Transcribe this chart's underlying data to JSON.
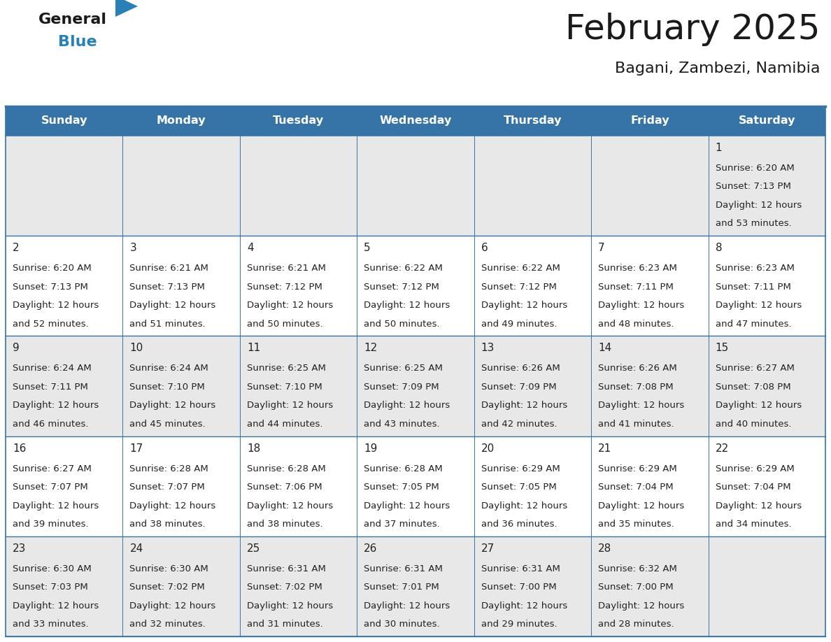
{
  "title": "February 2025",
  "subtitle": "Bagani, Zambezi, Namibia",
  "days_of_week": [
    "Sunday",
    "Monday",
    "Tuesday",
    "Wednesday",
    "Thursday",
    "Friday",
    "Saturday"
  ],
  "header_bg": "#3674a8",
  "header_text": "#ffffff",
  "cell_bg": "#e8e8e8",
  "cell_bg_white": "#ffffff",
  "border_color": "#3674a8",
  "text_color": "#222222",
  "day_num_color": "#222222",
  "title_color": "#1a1a1a",
  "subtitle_color": "#1a1a1a",
  "logo_black": "#1a1a1a",
  "logo_blue": "#2980b9",
  "triangle_color": "#2980b9",
  "calendar": [
    [
      {
        "day": null,
        "info": ""
      },
      {
        "day": null,
        "info": ""
      },
      {
        "day": null,
        "info": ""
      },
      {
        "day": null,
        "info": ""
      },
      {
        "day": null,
        "info": ""
      },
      {
        "day": null,
        "info": ""
      },
      {
        "day": 1,
        "info": "Sunrise: 6:20 AM\nSunset: 7:13 PM\nDaylight: 12 hours\nand 53 minutes."
      }
    ],
    [
      {
        "day": 2,
        "info": "Sunrise: 6:20 AM\nSunset: 7:13 PM\nDaylight: 12 hours\nand 52 minutes."
      },
      {
        "day": 3,
        "info": "Sunrise: 6:21 AM\nSunset: 7:13 PM\nDaylight: 12 hours\nand 51 minutes."
      },
      {
        "day": 4,
        "info": "Sunrise: 6:21 AM\nSunset: 7:12 PM\nDaylight: 12 hours\nand 50 minutes."
      },
      {
        "day": 5,
        "info": "Sunrise: 6:22 AM\nSunset: 7:12 PM\nDaylight: 12 hours\nand 50 minutes."
      },
      {
        "day": 6,
        "info": "Sunrise: 6:22 AM\nSunset: 7:12 PM\nDaylight: 12 hours\nand 49 minutes."
      },
      {
        "day": 7,
        "info": "Sunrise: 6:23 AM\nSunset: 7:11 PM\nDaylight: 12 hours\nand 48 minutes."
      },
      {
        "day": 8,
        "info": "Sunrise: 6:23 AM\nSunset: 7:11 PM\nDaylight: 12 hours\nand 47 minutes."
      }
    ],
    [
      {
        "day": 9,
        "info": "Sunrise: 6:24 AM\nSunset: 7:11 PM\nDaylight: 12 hours\nand 46 minutes."
      },
      {
        "day": 10,
        "info": "Sunrise: 6:24 AM\nSunset: 7:10 PM\nDaylight: 12 hours\nand 45 minutes."
      },
      {
        "day": 11,
        "info": "Sunrise: 6:25 AM\nSunset: 7:10 PM\nDaylight: 12 hours\nand 44 minutes."
      },
      {
        "day": 12,
        "info": "Sunrise: 6:25 AM\nSunset: 7:09 PM\nDaylight: 12 hours\nand 43 minutes."
      },
      {
        "day": 13,
        "info": "Sunrise: 6:26 AM\nSunset: 7:09 PM\nDaylight: 12 hours\nand 42 minutes."
      },
      {
        "day": 14,
        "info": "Sunrise: 6:26 AM\nSunset: 7:08 PM\nDaylight: 12 hours\nand 41 minutes."
      },
      {
        "day": 15,
        "info": "Sunrise: 6:27 AM\nSunset: 7:08 PM\nDaylight: 12 hours\nand 40 minutes."
      }
    ],
    [
      {
        "day": 16,
        "info": "Sunrise: 6:27 AM\nSunset: 7:07 PM\nDaylight: 12 hours\nand 39 minutes."
      },
      {
        "day": 17,
        "info": "Sunrise: 6:28 AM\nSunset: 7:07 PM\nDaylight: 12 hours\nand 38 minutes."
      },
      {
        "day": 18,
        "info": "Sunrise: 6:28 AM\nSunset: 7:06 PM\nDaylight: 12 hours\nand 38 minutes."
      },
      {
        "day": 19,
        "info": "Sunrise: 6:28 AM\nSunset: 7:05 PM\nDaylight: 12 hours\nand 37 minutes."
      },
      {
        "day": 20,
        "info": "Sunrise: 6:29 AM\nSunset: 7:05 PM\nDaylight: 12 hours\nand 36 minutes."
      },
      {
        "day": 21,
        "info": "Sunrise: 6:29 AM\nSunset: 7:04 PM\nDaylight: 12 hours\nand 35 minutes."
      },
      {
        "day": 22,
        "info": "Sunrise: 6:29 AM\nSunset: 7:04 PM\nDaylight: 12 hours\nand 34 minutes."
      }
    ],
    [
      {
        "day": 23,
        "info": "Sunrise: 6:30 AM\nSunset: 7:03 PM\nDaylight: 12 hours\nand 33 minutes."
      },
      {
        "day": 24,
        "info": "Sunrise: 6:30 AM\nSunset: 7:02 PM\nDaylight: 12 hours\nand 32 minutes."
      },
      {
        "day": 25,
        "info": "Sunrise: 6:31 AM\nSunset: 7:02 PM\nDaylight: 12 hours\nand 31 minutes."
      },
      {
        "day": 26,
        "info": "Sunrise: 6:31 AM\nSunset: 7:01 PM\nDaylight: 12 hours\nand 30 minutes."
      },
      {
        "day": 27,
        "info": "Sunrise: 6:31 AM\nSunset: 7:00 PM\nDaylight: 12 hours\nand 29 minutes."
      },
      {
        "day": 28,
        "info": "Sunrise: 6:32 AM\nSunset: 7:00 PM\nDaylight: 12 hours\nand 28 minutes."
      },
      {
        "day": null,
        "info": ""
      }
    ]
  ]
}
